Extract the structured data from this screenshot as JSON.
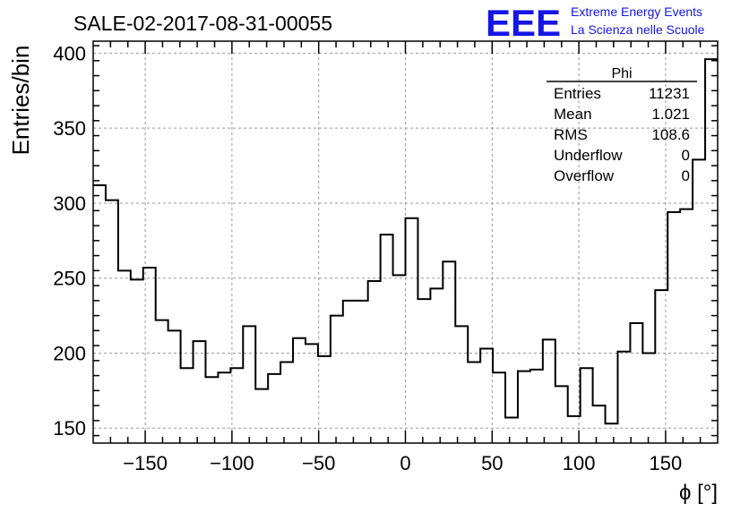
{
  "header": {
    "run_title": "SALE-02-2017-08-31-00055",
    "logo_letters": "EEE",
    "logo_line1": "Extreme Energy Events",
    "logo_line2": "La Scienza nelle Scuole",
    "brand_color": "#1515e6"
  },
  "stats": {
    "title": "Phi",
    "rows": [
      {
        "label": "Entries",
        "value": "11231"
      },
      {
        "label": "Mean",
        "value": "1.021"
      },
      {
        "label": "RMS",
        "value": "108.6"
      },
      {
        "label": "Underflow",
        "value": "0"
      },
      {
        "label": "Overflow",
        "value": "0"
      }
    ]
  },
  "chart_data": {
    "type": "histogram",
    "title": "SALE-02-2017-08-31-00055",
    "xlabel": "ϕ [°]",
    "ylabel": "Entries/bin",
    "xlim": [
      -180,
      180
    ],
    "ylim": [
      140,
      408
    ],
    "grid": true,
    "bin_width": 7.2,
    "x_ticks": [
      -150,
      -100,
      -50,
      0,
      50,
      100,
      150
    ],
    "x_tick_labels": [
      "−150",
      "−100",
      "−50",
      "0",
      "50",
      "100",
      "150"
    ],
    "y_ticks": [
      150,
      200,
      250,
      300,
      350,
      400
    ],
    "y_tick_labels": [
      "150",
      "200",
      "250",
      "300",
      "350",
      "400"
    ],
    "values": [
      312,
      302,
      255,
      249,
      257,
      222,
      215,
      190,
      208,
      184,
      187,
      190,
      218,
      176,
      186,
      194,
      210,
      206,
      198,
      225,
      235,
      235,
      248,
      279,
      252,
      290,
      236,
      243,
      261,
      218,
      194,
      203,
      187,
      157,
      188,
      189,
      209,
      178,
      158,
      190,
      165,
      153,
      201,
      220,
      200,
      242,
      294,
      296,
      329,
      396
    ]
  }
}
